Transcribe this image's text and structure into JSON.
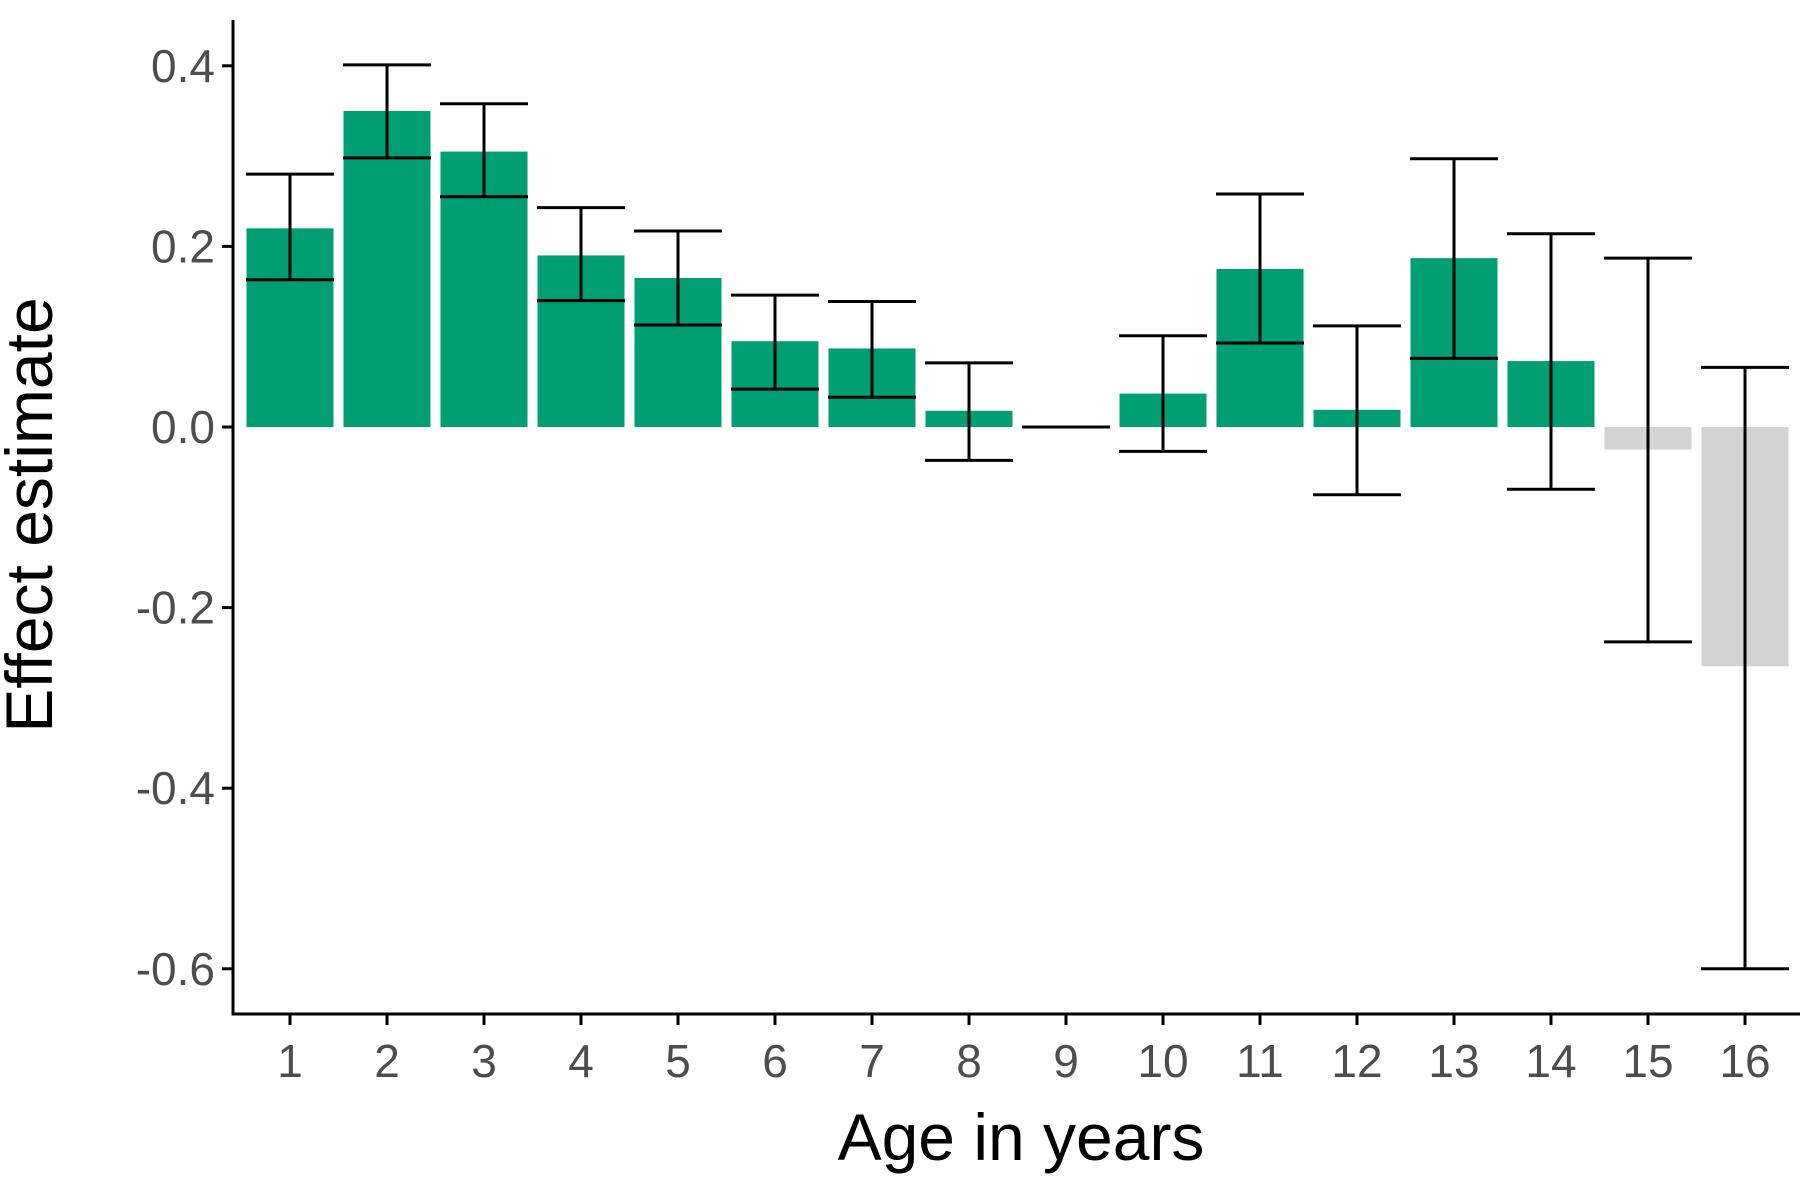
{
  "chart_data": {
    "type": "bar",
    "xlabel": "Age in years",
    "ylabel": "Effect estimate",
    "categories": [
      "1",
      "2",
      "3",
      "4",
      "5",
      "6",
      "7",
      "8",
      "9",
      "10",
      "11",
      "12",
      "13",
      "14",
      "15",
      "16"
    ],
    "values": [
      0.22,
      0.35,
      0.305,
      0.19,
      0.165,
      0.095,
      0.087,
      0.018,
      0.0,
      0.037,
      0.175,
      0.019,
      0.187,
      0.073,
      -0.025,
      -0.265
    ],
    "ci_lower": [
      0.163,
      0.298,
      0.255,
      0.14,
      0.113,
      0.042,
      0.033,
      -0.037,
      0.0,
      -0.027,
      0.093,
      -0.075,
      0.076,
      -0.069,
      -0.238,
      -0.6
    ],
    "ci_upper": [
      0.28,
      0.401,
      0.358,
      0.243,
      0.217,
      0.146,
      0.139,
      0.071,
      0.0,
      0.101,
      0.258,
      0.112,
      0.297,
      0.214,
      0.187,
      0.066
    ],
    "significant": [
      true,
      true,
      true,
      true,
      true,
      true,
      true,
      true,
      true,
      true,
      true,
      true,
      true,
      true,
      false,
      false
    ],
    "yticks": [
      0.4,
      0.2,
      0.0,
      -0.2,
      -0.4,
      -0.6
    ],
    "ytick_labels": [
      "0.4",
      "0.2",
      "0.0",
      "-0.2",
      "-0.4",
      "-0.6"
    ],
    "ylim": [
      -0.65,
      0.45
    ],
    "grid": false,
    "colors": {
      "bar": "#009E73",
      "bar_nonsignificant": "#d3d3d3",
      "errorbar": "#000000",
      "axis": "#000000",
      "tick_text": "#4d4d4d",
      "background": "#ffffff"
    }
  }
}
